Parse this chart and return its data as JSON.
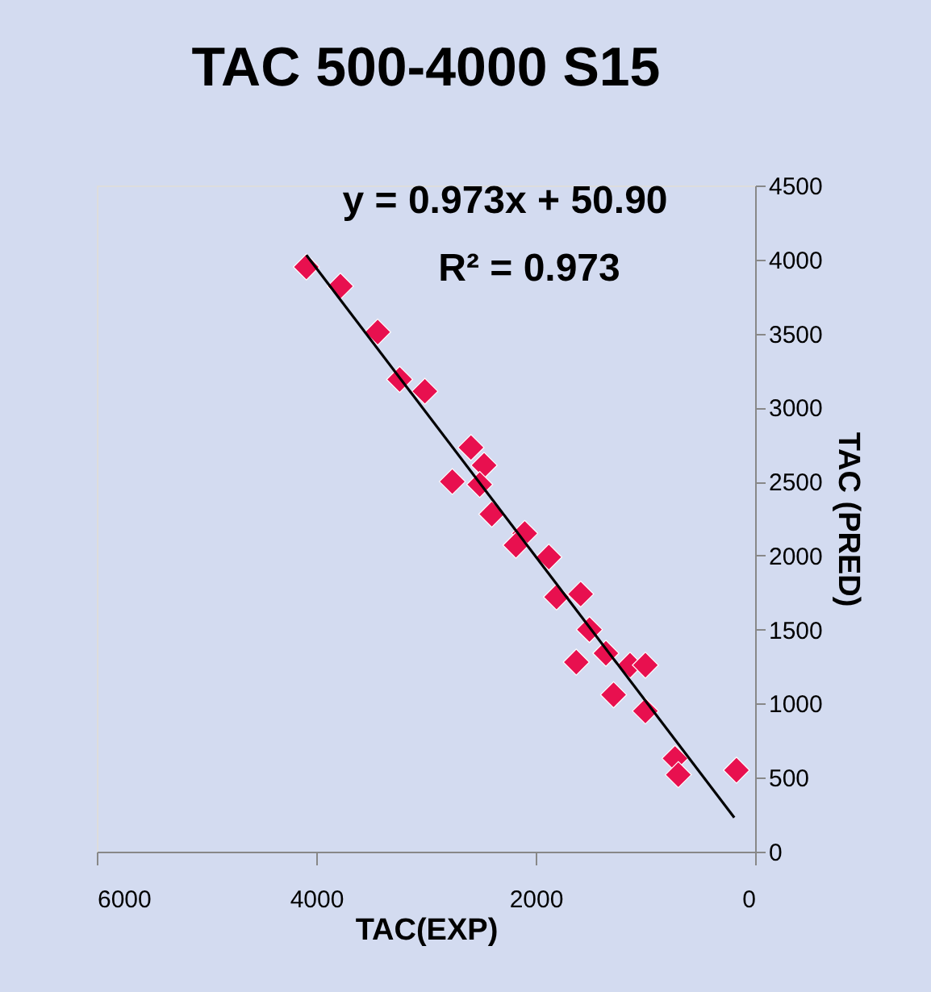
{
  "chart_data": {
    "type": "scatter",
    "title": "TAC   500-4000  S15",
    "xlabel": "TAC(EXP)",
    "ylabel": "TAC (PRED)",
    "annotations": [
      "y = 0.973x + 50.90",
      "R² = 0.973"
    ],
    "xlim": [
      6000,
      0
    ],
    "xticks": [
      6000,
      4000,
      2000,
      0
    ],
    "ylim": [
      0,
      4500
    ],
    "yticks": [
      0,
      500,
      1000,
      1500,
      2000,
      2500,
      3000,
      3500,
      4000,
      4500
    ],
    "grid": false,
    "legend": false,
    "marker": "diamond",
    "series": [
      {
        "color": "#e8104f",
        "x": [
          4090,
          3780,
          3440,
          3240,
          3010,
          2590,
          2760,
          2470,
          2510,
          2400,
          2100,
          2180,
          1880,
          1810,
          1590,
          1510,
          1630,
          1360,
          1140,
          1000,
          1290,
          1000,
          730,
          700,
          170
        ],
        "values": [
          3950,
          3820,
          3510,
          3190,
          3110,
          2730,
          2500,
          2610,
          2480,
          2280,
          2150,
          2070,
          1990,
          1720,
          1740,
          1500,
          1280,
          1340,
          1260,
          1260,
          1060,
          950,
          630,
          520,
          550
        ]
      },
      {
        "type": "line",
        "color": "#000000",
        "line_style": "solid",
        "marker": "none",
        "x": [
          4090,
          190
        ],
        "values": [
          4030,
          230
        ]
      }
    ]
  }
}
